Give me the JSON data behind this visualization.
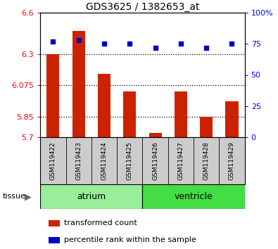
{
  "title": "GDS3625 / 1382653_at",
  "samples": [
    "GSM119422",
    "GSM119423",
    "GSM119424",
    "GSM119425",
    "GSM119426",
    "GSM119427",
    "GSM119428",
    "GSM119429"
  ],
  "bar_values": [
    6.3,
    6.47,
    6.16,
    6.03,
    5.73,
    6.03,
    5.85,
    5.96
  ],
  "bar_base": 5.7,
  "percentile_values": [
    77,
    78,
    75,
    75,
    72,
    75,
    72,
    75
  ],
  "ylim_left": [
    5.7,
    6.6
  ],
  "ylim_right": [
    0,
    100
  ],
  "yticks_left": [
    5.7,
    5.85,
    6.075,
    6.3,
    6.6
  ],
  "ytick_labels_left": [
    "5.7",
    "5.85",
    "6.075",
    "6.3",
    "6.6"
  ],
  "yticks_right": [
    0,
    25,
    50,
    75,
    100
  ],
  "ytick_labels_right": [
    "0",
    "25",
    "50",
    "75",
    "100%"
  ],
  "hlines": [
    5.85,
    6.075,
    6.3
  ],
  "bar_color": "#CC2200",
  "dot_color": "#0000CC",
  "tissue_groups": [
    {
      "label": "atrium",
      "start": 0,
      "end": 3,
      "color": "#99EE99"
    },
    {
      "label": "ventricle",
      "start": 4,
      "end": 7,
      "color": "#44DD44"
    }
  ],
  "tissue_label": "tissue",
  "legend_bar_label": "transformed count",
  "legend_dot_label": "percentile rank within the sample",
  "sample_bg": "#CCCCCC",
  "plot_bg": "#FFFFFF"
}
